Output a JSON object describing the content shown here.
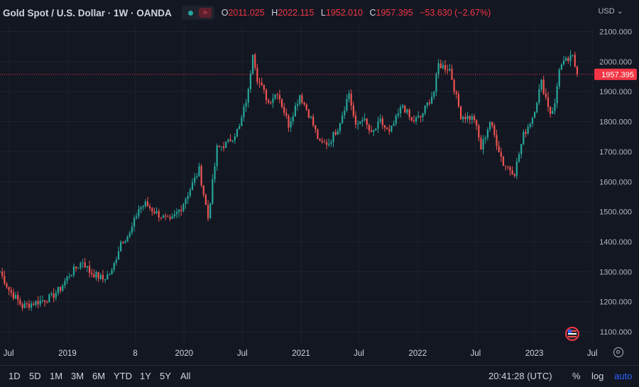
{
  "header": {
    "symbol": "Gold Spot / U.S. Dollar · 1W · OANDA",
    "ohlc": [
      {
        "label": "O",
        "value": "2011.025"
      },
      {
        "label": "H",
        "value": "2022.115"
      },
      {
        "label": "L",
        "value": "1952.010"
      },
      {
        "label": "C",
        "value": "1957.395"
      }
    ],
    "change": "−53.630 (−2.67%)",
    "currency": "USD"
  },
  "footer": {
    "ranges": [
      "1D",
      "5D",
      "1M",
      "3M",
      "6M",
      "YTD",
      "1Y",
      "5Y",
      "All"
    ],
    "clock": "20:41:28 (UTC)",
    "percent": "%",
    "log": "log",
    "auto": "auto"
  },
  "colors": {
    "background": "#131722",
    "up": "#26a69a",
    "down": "#ef5350",
    "grid": "#1e222d",
    "last_price": "#f23645"
  },
  "icons": [
    "us-flag-icon",
    "settings-icon",
    "chevron-down-icon"
  ],
  "chart_data": {
    "type": "candlestick",
    "title": "",
    "ylim": [
      1060,
      2120
    ],
    "xlim": [
      "2018-06-04",
      "2023-07-03"
    ],
    "y_ticks": [
      1100,
      1200,
      1300,
      1400,
      1500,
      1600,
      1700,
      1800,
      1900,
      2000,
      2100
    ],
    "y_tick_labels": [
      "1100.000",
      "1200.000",
      "1300.000",
      "1400.000",
      "1500.000",
      "1600.000",
      "1700.000",
      "1800.000",
      "1900.000",
      "2000.000",
      "2100.000"
    ],
    "x_ticks": [
      {
        "date": "2018-07-01",
        "label": "Jul"
      },
      {
        "date": "2019-01-01",
        "label": "2019"
      },
      {
        "date": "2019-08-01",
        "label": "8"
      },
      {
        "date": "2020-01-01",
        "label": "2020"
      },
      {
        "date": "2020-07-01",
        "label": "Jul"
      },
      {
        "date": "2021-01-01",
        "label": "2021"
      },
      {
        "date": "2021-07-01",
        "label": "Jul"
      },
      {
        "date": "2022-01-01",
        "label": "2022"
      },
      {
        "date": "2022-07-01",
        "label": "Jul"
      },
      {
        "date": "2023-01-01",
        "label": "2023"
      },
      {
        "date": "2023-07-01",
        "label": "Jul"
      }
    ],
    "last_price": 1957.395,
    "last_price_label": "1957.395",
    "weekly_closes": [
      {
        "date": "2018-06-04",
        "close": 1300
      },
      {
        "date": "2018-07-02",
        "close": 1240
      },
      {
        "date": "2018-08-13",
        "close": 1185
      },
      {
        "date": "2018-10-01",
        "close": 1200
      },
      {
        "date": "2018-11-12",
        "close": 1215
      },
      {
        "date": "2018-12-10",
        "close": 1245
      },
      {
        "date": "2019-01-07",
        "close": 1290
      },
      {
        "date": "2019-02-18",
        "close": 1335
      },
      {
        "date": "2019-03-11",
        "close": 1300
      },
      {
        "date": "2019-04-22",
        "close": 1275
      },
      {
        "date": "2019-05-20",
        "close": 1300
      },
      {
        "date": "2019-06-17",
        "close": 1400
      },
      {
        "date": "2019-07-15",
        "close": 1425
      },
      {
        "date": "2019-08-12",
        "close": 1510
      },
      {
        "date": "2019-09-02",
        "close": 1525
      },
      {
        "date": "2019-10-07",
        "close": 1495
      },
      {
        "date": "2019-11-18",
        "close": 1465
      },
      {
        "date": "2019-12-23",
        "close": 1515
      },
      {
        "date": "2020-01-13",
        "close": 1560
      },
      {
        "date": "2020-02-17",
        "close": 1640
      },
      {
        "date": "2020-03-16",
        "close": 1480
      },
      {
        "date": "2020-04-13",
        "close": 1710
      },
      {
        "date": "2020-05-18",
        "close": 1730
      },
      {
        "date": "2020-06-22",
        "close": 1780
      },
      {
        "date": "2020-07-20",
        "close": 1900
      },
      {
        "date": "2020-08-03",
        "close": 2035
      },
      {
        "date": "2020-08-17",
        "close": 1945
      },
      {
        "date": "2020-09-21",
        "close": 1865
      },
      {
        "date": "2020-10-19",
        "close": 1900
      },
      {
        "date": "2020-11-23",
        "close": 1790
      },
      {
        "date": "2020-12-28",
        "close": 1890
      },
      {
        "date": "2021-02-01",
        "close": 1810
      },
      {
        "date": "2021-03-01",
        "close": 1725
      },
      {
        "date": "2021-03-29",
        "close": 1730
      },
      {
        "date": "2021-04-26",
        "close": 1780
      },
      {
        "date": "2021-05-31",
        "close": 1895
      },
      {
        "date": "2021-06-21",
        "close": 1780
      },
      {
        "date": "2021-07-12",
        "close": 1815
      },
      {
        "date": "2021-08-09",
        "close": 1755
      },
      {
        "date": "2021-09-06",
        "close": 1800
      },
      {
        "date": "2021-10-04",
        "close": 1760
      },
      {
        "date": "2021-11-15",
        "close": 1855
      },
      {
        "date": "2021-12-13",
        "close": 1800
      },
      {
        "date": "2022-01-10",
        "close": 1815
      },
      {
        "date": "2022-02-21",
        "close": 1900
      },
      {
        "date": "2022-03-07",
        "close": 1990
      },
      {
        "date": "2022-04-11",
        "close": 1975
      },
      {
        "date": "2022-05-02",
        "close": 1880
      },
      {
        "date": "2022-05-16",
        "close": 1820
      },
      {
        "date": "2022-06-27",
        "close": 1810
      },
      {
        "date": "2022-07-18",
        "close": 1710
      },
      {
        "date": "2022-08-15",
        "close": 1800
      },
      {
        "date": "2022-09-26",
        "close": 1660
      },
      {
        "date": "2022-10-31",
        "close": 1630
      },
      {
        "date": "2022-11-28",
        "close": 1755
      },
      {
        "date": "2022-12-26",
        "close": 1815
      },
      {
        "date": "2023-01-23",
        "close": 1930
      },
      {
        "date": "2023-02-20",
        "close": 1830
      },
      {
        "date": "2023-03-06",
        "close": 1855
      },
      {
        "date": "2023-03-20",
        "close": 1980
      },
      {
        "date": "2023-04-10",
        "close": 2000
      },
      {
        "date": "2023-05-01",
        "close": 2015
      },
      {
        "date": "2023-05-15",
        "close": 1957
      }
    ]
  }
}
